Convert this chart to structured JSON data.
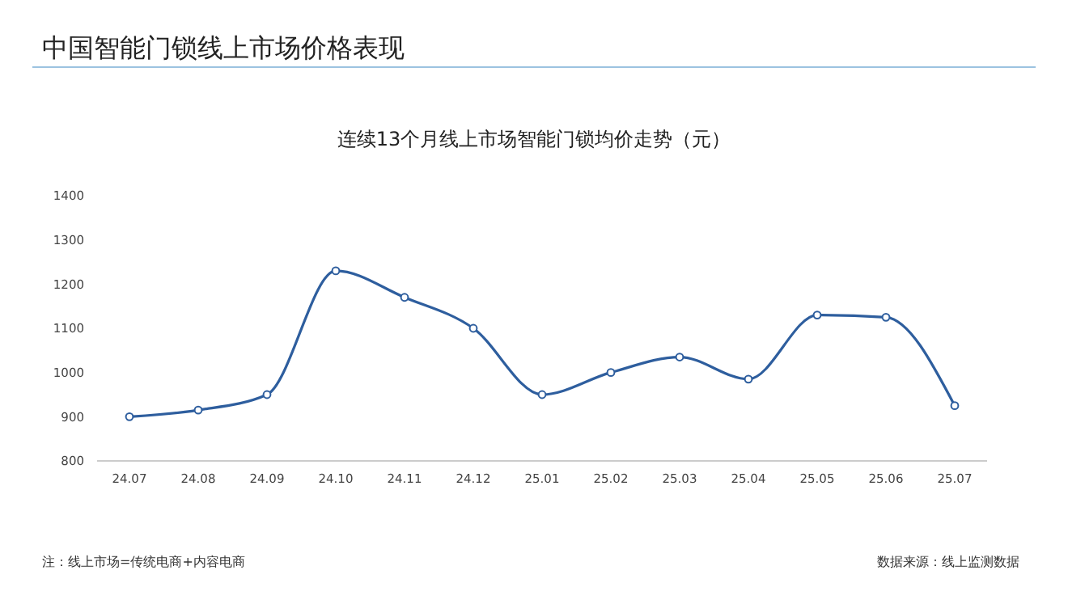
{
  "chart_data": {
    "type": "line",
    "title": "中国智能门锁线上市场价格表现",
    "subtitle": "连续13个月线上市场智能门锁均价走势（元）",
    "categories": [
      "24.07",
      "24.08",
      "24.09",
      "24.10",
      "24.11",
      "24.12",
      "25.01",
      "25.02",
      "25.03",
      "25.04",
      "25.05",
      "25.06",
      "25.07"
    ],
    "series": [
      {
        "color": "#2e5e9e",
        "values": [
          900,
          915,
          950,
          1230,
          1170,
          1100,
          950,
          1000,
          1035,
          985,
          1130,
          1125,
          925
        ]
      }
    ],
    "ylim": [
      800,
      1400
    ],
    "yticks": [
      800,
      900,
      1000,
      1100,
      1200,
      1300,
      1400
    ],
    "grid": false,
    "legend": false,
    "marker": "circle",
    "line_style": "solid",
    "annotations": [
      "注：线上市场=传统电商+内容电商",
      "数据来源：线上监测数据"
    ]
  }
}
